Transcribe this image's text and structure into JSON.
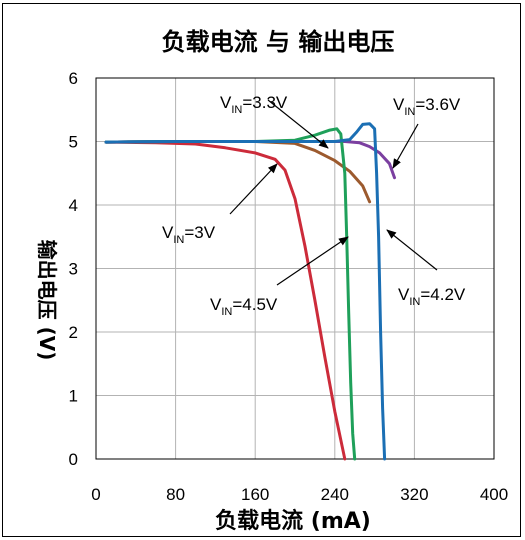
{
  "chart_data": {
    "type": "line",
    "title": "负载电流 与 输出电压",
    "xlabel": "负载电流 (mA)",
    "ylabel": "输出电压 (V)",
    "xlim": [
      0,
      400
    ],
    "ylim": [
      0,
      6
    ],
    "xticks": [
      "0",
      "80",
      "160",
      "240",
      "320",
      "400"
    ],
    "yticks": [
      "0",
      "1",
      "2",
      "3",
      "4",
      "5",
      "6"
    ],
    "grid": true,
    "series": [
      {
        "name": "VIN=3V",
        "color": "#cc2b3a",
        "x": [
          10,
          60,
          100,
          130,
          160,
          180,
          190,
          200,
          210,
          220,
          230,
          240,
          250
        ],
        "y": [
          4.99,
          4.98,
          4.96,
          4.9,
          4.82,
          4.72,
          4.55,
          4.1,
          3.35,
          2.5,
          1.6,
          0.75,
          0.0
        ]
      },
      {
        "name": "VIN=3.3V",
        "color": "#9c5a2e",
        "x": [
          10,
          80,
          160,
          200,
          220,
          240,
          255,
          268,
          275
        ],
        "y": [
          4.99,
          5.0,
          5.0,
          4.97,
          4.86,
          4.7,
          4.53,
          4.3,
          4.05
        ]
      },
      {
        "name": "VIN=3.6V",
        "color": "#7b3fa0",
        "x": [
          10,
          80,
          160,
          220,
          250,
          265,
          275,
          285,
          295,
          300
        ],
        "y": [
          4.99,
          5.0,
          5.0,
          5.0,
          5.0,
          4.98,
          4.92,
          4.82,
          4.65,
          4.43
        ]
      },
      {
        "name": "VIN=4.5V",
        "color": "#1fa05a",
        "x": [
          10,
          80,
          160,
          200,
          220,
          235,
          242,
          246,
          250,
          252,
          254,
          256,
          258,
          260
        ],
        "y": [
          4.99,
          5.0,
          5.0,
          5.02,
          5.1,
          5.18,
          5.2,
          5.12,
          4.5,
          3.5,
          2.3,
          1.2,
          0.4,
          0.0
        ]
      },
      {
        "name": "VIN=4.2V",
        "color": "#1b6fb4",
        "x": [
          10,
          80,
          160,
          240,
          255,
          262,
          268,
          275,
          280,
          282,
          284,
          286,
          288,
          290
        ],
        "y": [
          4.99,
          5.0,
          5.0,
          5.0,
          5.03,
          5.15,
          5.27,
          5.28,
          5.2,
          4.5,
          3.5,
          2.0,
          0.8,
          0.0
        ]
      }
    ],
    "annotations": [
      {
        "main": "V",
        "sub": "IN",
        "value": "=3.3V"
      },
      {
        "main": "V",
        "sub": "IN",
        "value": "=3.6V"
      },
      {
        "main": "V",
        "sub": "IN",
        "value": "=3V"
      },
      {
        "main": "V",
        "sub": "IN",
        "value": "=4.5V"
      },
      {
        "main": "V",
        "sub": "IN",
        "value": "=4.2V"
      }
    ]
  }
}
